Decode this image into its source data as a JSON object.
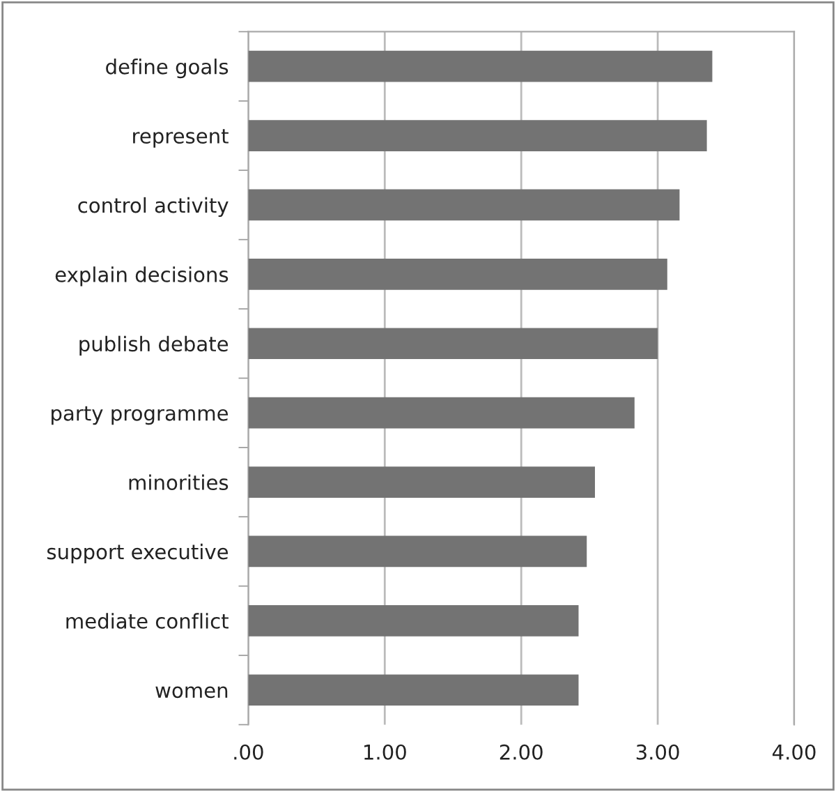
{
  "chart_data": {
    "type": "bar",
    "orientation": "horizontal",
    "categories": [
      "define goals",
      "represent",
      "control activity",
      "explain decisions",
      "publish debate",
      "party programme",
      "minorities",
      "support executive",
      "mediate conflict",
      "women"
    ],
    "values": [
      3.4,
      3.36,
      3.16,
      3.07,
      3.0,
      2.83,
      2.54,
      2.48,
      2.42,
      2.42
    ],
    "color": "#737373",
    "xlim": [
      0,
      4
    ],
    "xticks": [
      {
        "value": 0,
        "label": ".00"
      },
      {
        "value": 1,
        "label": "1.00"
      },
      {
        "value": 2,
        "label": "2.00"
      },
      {
        "value": 3,
        "label": "3.00"
      },
      {
        "value": 4,
        "label": "4.00"
      }
    ],
    "grid": "x",
    "legend": false
  }
}
